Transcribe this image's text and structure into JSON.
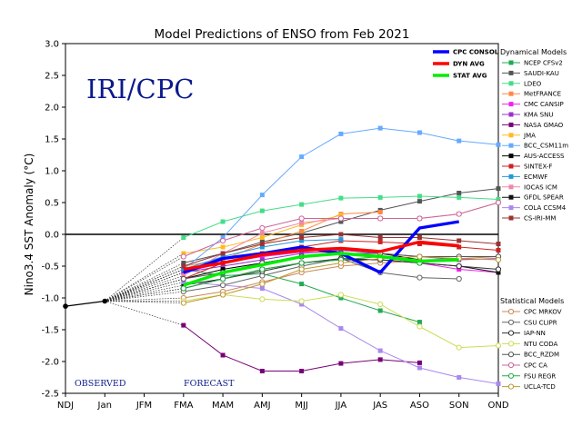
{
  "chart_data": {
    "type": "line",
    "title": "Model Predictions of ENSO from Feb 2021",
    "xlabel": "",
    "ylabel": "Nino3.4 SST Anomaly (°C)",
    "ylim": [
      -2.5,
      3.0
    ],
    "yticks": [
      "-2.5",
      "-2.0",
      "-1.5",
      "-1.0",
      "-0.5",
      "0.0",
      "0.5",
      "1.0",
      "1.5",
      "2.0",
      "2.5",
      "3.0"
    ],
    "categories": [
      "NDJ",
      "Jan",
      "JFM",
      "FMA",
      "MAM",
      "AMJ",
      "MJJ",
      "JJA",
      "JAS",
      "ASO",
      "SON",
      "OND"
    ],
    "logo_text": "IRI/CPC",
    "observed_label": "OBSERVED",
    "forecast_label": "FORECAST",
    "observed": [
      -1.13,
      -1.05
    ],
    "dynamical_title": "Dynamical Models",
    "statistical_title": "Statistical Models",
    "summary_lines": [
      {
        "name": "CPC CONSOL",
        "color": "#0000ff",
        "values": [
          -0.6,
          -0.38,
          -0.3,
          -0.2,
          -0.3,
          -0.6,
          0.1,
          0.2
        ]
      },
      {
        "name": "DYN AVG",
        "color": "#ff0000",
        "values": [
          -0.55,
          -0.45,
          -0.32,
          -0.25,
          -0.22,
          -0.27,
          -0.12,
          -0.18
        ]
      },
      {
        "name": "STAT AVG",
        "color": "#00ee00",
        "values": [
          -0.8,
          -0.6,
          -0.48,
          -0.35,
          -0.3,
          -0.35,
          -0.42,
          -0.4
        ]
      }
    ],
    "dynamical": [
      {
        "name": "NCEP CFSv2",
        "color": "#22aa55",
        "marker": "square",
        "values": [
          -0.55,
          -0.65,
          -0.62,
          -0.78,
          -1.0,
          -1.2,
          -1.38
        ]
      },
      {
        "name": "SAUDI-KAU",
        "color": "#555555",
        "marker": "square",
        "values": [
          -0.45,
          -0.3,
          -0.12,
          0.02,
          0.2,
          0.38,
          0.52,
          0.65,
          0.72
        ]
      },
      {
        "name": "LDEO",
        "color": "#44dd88",
        "marker": "square",
        "values": [
          -0.05,
          0.2,
          0.37,
          0.47,
          0.57,
          0.58,
          0.6,
          0.58,
          0.55
        ]
      },
      {
        "name": "MetFRANCE",
        "color": "#ff8844",
        "marker": "square",
        "values": [
          -0.5,
          -0.4,
          -0.15,
          0.05,
          0.32,
          0.35
        ]
      },
      {
        "name": "CMC CANSIP",
        "color": "#ee22ee",
        "marker": "square",
        "values": [
          -0.6,
          -0.45,
          -0.35,
          -0.28,
          -0.28,
          -0.35,
          -0.45,
          -0.55,
          -0.6
        ]
      },
      {
        "name": "KMA SNU",
        "color": "#9933cc",
        "marker": "square",
        "values": [
          -0.6,
          -0.5,
          -0.4,
          -0.3,
          -0.25,
          -0.3,
          -0.35,
          -0.4,
          -0.38
        ]
      },
      {
        "name": "NASA GMAO",
        "color": "#770077",
        "marker": "square",
        "values": [
          -1.43,
          -1.9,
          -2.15,
          -2.15,
          -2.03,
          -1.97,
          -2.02
        ]
      },
      {
        "name": "JMA",
        "color": "#ffbb22",
        "marker": "square",
        "values": [
          -0.3,
          -0.2,
          -0.05,
          0.15,
          0.3
        ]
      },
      {
        "name": "BCC_CSM11m",
        "color": "#66aaff",
        "marker": "square",
        "values": [
          -0.55,
          -0.05,
          0.62,
          1.22,
          1.58,
          1.67,
          1.6,
          1.47,
          1.41
        ]
      },
      {
        "name": "AUS-ACCESS",
        "color": "#000000",
        "marker": "square",
        "values": [
          -0.7,
          -0.55,
          -0.45,
          -0.35,
          -0.3,
          -0.3,
          -0.4
        ]
      },
      {
        "name": "SINTEX-F",
        "color": "#cc2222",
        "marker": "square",
        "values": [
          -0.7,
          -0.45,
          -0.3,
          -0.2,
          -0.1,
          -0.12,
          -0.15,
          -0.2,
          -0.25
        ]
      },
      {
        "name": "ECMWF",
        "color": "#2299dd",
        "marker": "square",
        "values": [
          -0.55,
          -0.35,
          -0.2,
          -0.1,
          -0.08
        ]
      },
      {
        "name": "IOCAS ICM",
        "color": "#ee88aa",
        "marker": "square",
        "values": [
          -0.65,
          -0.3,
          0.02,
          0.18,
          0.25,
          0.25,
          0.25,
          0.32,
          0.5
        ]
      },
      {
        "name": "GFDL SPEAR",
        "color": "#111111",
        "marker": "square",
        "values": [
          -0.8,
          -0.7,
          -0.55,
          -0.45,
          -0.4,
          -0.4,
          -0.45,
          -0.5,
          -0.6
        ]
      },
      {
        "name": "COLA CCSM4",
        "color": "#aa88ee",
        "marker": "square",
        "values": [
          -0.75,
          -0.8,
          -0.85,
          -1.1,
          -1.48,
          -1.83,
          -2.1,
          -2.25,
          -2.35
        ]
      },
      {
        "name": "CS-IRI-MM",
        "color": "#993333",
        "marker": "square",
        "values": [
          -0.5,
          -0.3,
          -0.15,
          -0.05,
          0.0,
          -0.05,
          -0.05,
          -0.1,
          -0.15
        ]
      }
    ],
    "statistical": [
      {
        "name": "CPC MRKOV",
        "color": "#cc8855",
        "marker": "circle",
        "values": [
          -1.0,
          -0.9,
          -0.75,
          -0.6,
          -0.5,
          -0.45,
          -0.42,
          -0.38,
          -0.35
        ]
      },
      {
        "name": "CSU CLIPR",
        "color": "#666666",
        "marker": "circle",
        "values": [
          -0.9,
          -0.8,
          -0.65,
          -0.5,
          -0.38,
          -0.6,
          -0.68,
          -0.7
        ]
      },
      {
        "name": "IAP-NN",
        "color": "#333333",
        "marker": "circle",
        "values": [
          -0.85,
          -0.7,
          -0.58,
          -0.45,
          -0.38,
          -0.4,
          -0.45,
          -0.5,
          -0.55
        ]
      },
      {
        "name": "NTU CODA",
        "color": "#ccdd55",
        "marker": "circle",
        "values": [
          -1.05,
          -0.95,
          -1.02,
          -1.05,
          -0.95,
          -1.1,
          -1.45,
          -1.78,
          -1.75
        ]
      },
      {
        "name": "BCC_RZDM",
        "color": "#555555",
        "marker": "circle",
        "values": [
          -0.7,
          -0.6,
          -0.45,
          -0.35,
          -0.3,
          -0.3,
          -0.35,
          -0.35,
          -0.35
        ]
      },
      {
        "name": "CPC CA",
        "color": "#cc6699",
        "marker": "circle",
        "values": [
          -0.35,
          -0.1,
          0.1,
          0.25,
          0.25,
          0.25,
          0.25,
          0.32,
          0.5
        ]
      },
      {
        "name": "FSU REGR",
        "color": "#22aa44",
        "marker": "circle",
        "values": [
          -0.85,
          -0.7,
          -0.55,
          -0.45,
          -0.4,
          -0.35,
          -0.45
        ]
      },
      {
        "name": "UCLA-TCD",
        "color": "#bb9933",
        "marker": "circle",
        "values": [
          -1.08,
          -0.95,
          -0.78,
          -0.55,
          -0.45,
          -0.38,
          -0.35,
          -0.38,
          -0.4
        ]
      }
    ]
  }
}
